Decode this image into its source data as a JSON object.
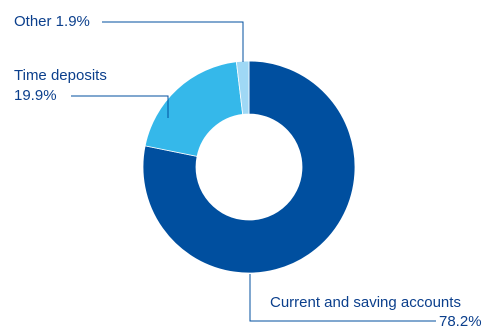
{
  "chart_data": {
    "type": "pie",
    "variant": "donut",
    "categories": [
      "Current and saving accounts",
      "Time deposits",
      "Other"
    ],
    "values": [
      78.2,
      19.9,
      1.9
    ],
    "unit": "%",
    "colors": [
      "#004f9f",
      "#35b8ea",
      "#9fd8f5"
    ],
    "leader_line_color": "#004f9f",
    "labels": {
      "other": "Other 1.9%",
      "time_deposits_name": "Time deposits",
      "time_deposits_value": "19.9%",
      "current_name": "Current and saving accounts",
      "current_value": "78.2%"
    }
  }
}
